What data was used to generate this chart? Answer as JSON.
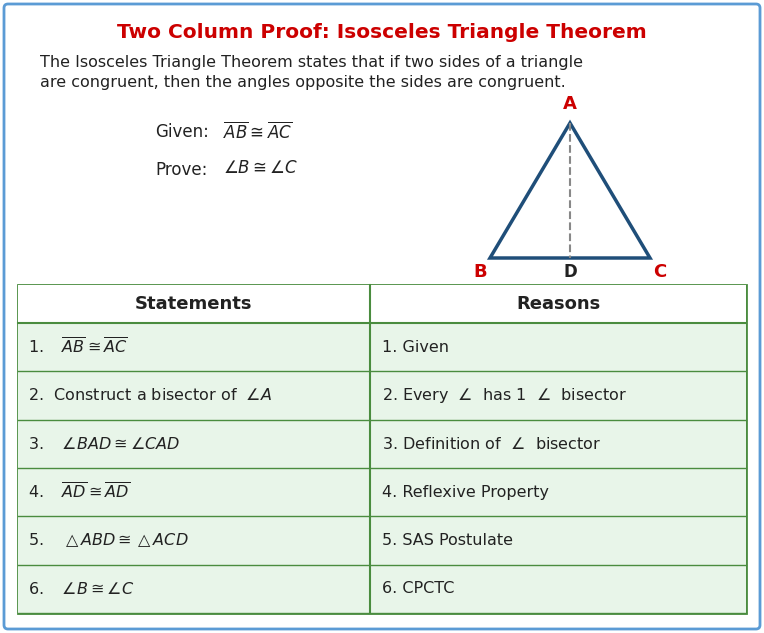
{
  "title": "Two Column Proof: Isosceles Triangle Theorem",
  "title_color": "#cc0000",
  "desc1": "The Isosceles Triangle Theorem states that if two sides of a triangle",
  "desc2": "are congruent, then the angles opposite the sides are congruent.",
  "outer_border_color": "#5b9bd5",
  "table_border_color": "#4a8c3f",
  "table_row_bg": "#e8f5e9",
  "table_header_bg": "#ffffff",
  "bg_color": "#ffffff",
  "text_color": "#222222",
  "label_color_A": "#cc0000",
  "label_color_BDC": "#cc0000",
  "triangle_color": "#1f4e79",
  "col1_header": "Statements",
  "col2_header": "Reasons",
  "figw": 7.64,
  "figh": 6.33,
  "dpi": 100
}
